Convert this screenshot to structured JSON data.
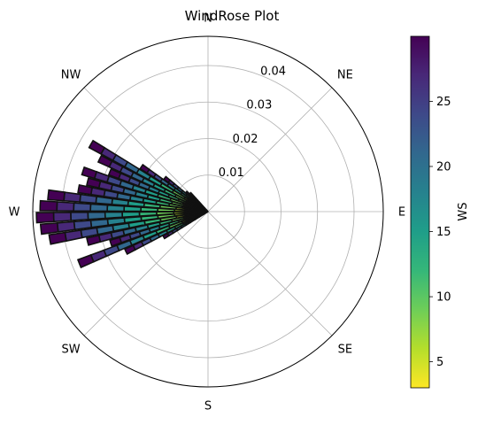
{
  "chart_data": {
    "type": "windrose",
    "title": "WindRose Plot",
    "directions": [
      "N",
      "NE",
      "E",
      "SE",
      "S",
      "SW",
      "W",
      "NW"
    ],
    "radial_ticks": [
      {
        "value": 0.01,
        "label": "0.01"
      },
      {
        "value": 0.02,
        "label": "0.02"
      },
      {
        "value": 0.03,
        "label": "0.03"
      },
      {
        "value": 0.04,
        "label": "0.04"
      }
    ],
    "rmax": 0.048,
    "grid": true,
    "colorbar": {
      "label": "WS",
      "range": [
        3,
        30
      ],
      "ticks": [
        {
          "value": 5,
          "label": "5"
        },
        {
          "value": 10,
          "label": "10"
        },
        {
          "value": 15,
          "label": "15"
        },
        {
          "value": 20,
          "label": "20"
        },
        {
          "value": 25,
          "label": "25"
        }
      ],
      "colormap": "viridis_r",
      "colors": [
        "#fde725",
        "#b5de2b",
        "#6ece58",
        "#35b779",
        "#1f9e89",
        "#26828e",
        "#31688e",
        "#3e4989",
        "#482878",
        "#440154"
      ]
    },
    "bin_edges": [
      3,
      6,
      9,
      12,
      15,
      18,
      21,
      24,
      27,
      30
    ],
    "sectors": [
      {
        "direction_deg": 240,
        "total": 0.014
      },
      {
        "direction_deg": 244,
        "total": 0.025
      },
      {
        "direction_deg": 248,
        "total": 0.038
      },
      {
        "direction_deg": 252,
        "total": 0.028
      },
      {
        "direction_deg": 256,
        "total": 0.034
      },
      {
        "direction_deg": 260,
        "total": 0.044
      },
      {
        "direction_deg": 264,
        "total": 0.046
      },
      {
        "direction_deg": 268,
        "total": 0.047
      },
      {
        "direction_deg": 272,
        "total": 0.046
      },
      {
        "direction_deg": 276,
        "total": 0.044
      },
      {
        "direction_deg": 280,
        "total": 0.036
      },
      {
        "direction_deg": 284,
        "total": 0.034
      },
      {
        "direction_deg": 288,
        "total": 0.036
      },
      {
        "direction_deg": 292,
        "total": 0.029
      },
      {
        "direction_deg": 296,
        "total": 0.033
      },
      {
        "direction_deg": 300,
        "total": 0.037
      },
      {
        "direction_deg": 304,
        "total": 0.022
      },
      {
        "direction_deg": 308,
        "total": 0.015
      },
      {
        "direction_deg": 312,
        "total": 0.008
      },
      {
        "direction_deg": 316,
        "total": 0.007
      }
    ]
  }
}
